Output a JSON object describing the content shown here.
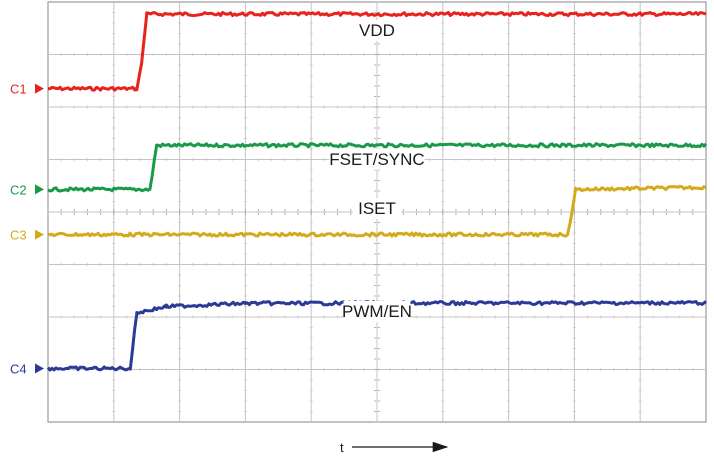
{
  "chart_data": {
    "type": "line",
    "title": "",
    "xlabel": "t",
    "ylabel": "",
    "grid": true,
    "divisions": {
      "x": 10,
      "y": 8
    },
    "xlim": [
      0,
      10
    ],
    "ylim": [
      0,
      8
    ],
    "series": [
      {
        "name": "C1",
        "label": "VDD",
        "color": "#e8221c",
        "points": [
          [
            0,
            6.35
          ],
          [
            1.35,
            6.35
          ],
          [
            1.42,
            6.8
          ],
          [
            1.5,
            7.77
          ],
          [
            10,
            7.77
          ]
        ]
      },
      {
        "name": "C2",
        "label": "FSET/SYNC",
        "color": "#1a9a48",
        "points": [
          [
            0,
            4.43
          ],
          [
            1.55,
            4.43
          ],
          [
            1.65,
            5.27
          ],
          [
            10,
            5.27
          ]
        ]
      },
      {
        "name": "C3",
        "label": "ISET",
        "color": "#d4aa1c",
        "points": [
          [
            0,
            3.57
          ],
          [
            7.9,
            3.57
          ],
          [
            8.02,
            4.43
          ],
          [
            10,
            4.47
          ]
        ]
      },
      {
        "name": "C4",
        "label": "PWM/EN",
        "color": "#2b3a97",
        "points": [
          [
            0,
            1.02
          ],
          [
            1.25,
            1.02
          ],
          [
            1.35,
            2.08
          ],
          [
            1.8,
            2.2
          ],
          [
            3,
            2.26
          ],
          [
            10,
            2.27
          ]
        ]
      }
    ]
  }
}
